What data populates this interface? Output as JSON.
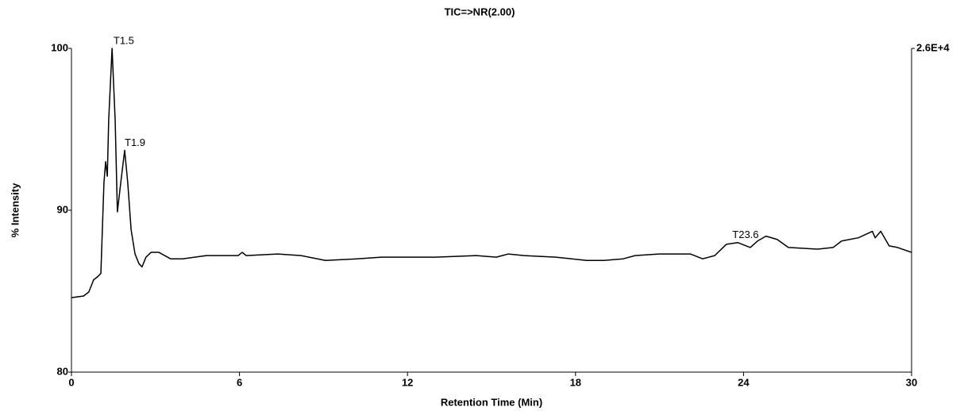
{
  "chart_data": {
    "type": "line",
    "title": "TIC=>NR(2.00)",
    "x_label": "Retention Time (Min)",
    "y_label": "% Intensity",
    "x": [
      0,
      0.43,
      0.62,
      0.79,
      0.94,
      1.05,
      1.16,
      1.22,
      1.28,
      1.33,
      1.45,
      1.56,
      1.64,
      1.76,
      1.9,
      2.01,
      2.13,
      2.27,
      2.41,
      2.52,
      2.66,
      2.84,
      3.12,
      3.54,
      3.97,
      4.82,
      5.39,
      5.95,
      6.1,
      6.24,
      7.37,
      8.2,
      9.07,
      10.2,
      11.06,
      11.6,
      13.0,
      14.46,
      15.17,
      15.6,
      16.16,
      17.3,
      18.4,
      19.0,
      19.7,
      20.13,
      20.98,
      22.1,
      22.54,
      22.97,
      23.39,
      23.8,
      24.24,
      24.5,
      24.8,
      25.2,
      25.6,
      26.65,
      27.2,
      27.5,
      28.1,
      28.6,
      28.7,
      28.9,
      29.2,
      29.5,
      30
    ],
    "series": [
      {
        "color": "#000000",
        "values": [
          84.6,
          84.7,
          84.95,
          85.7,
          85.9,
          86.1,
          91.7,
          93.0,
          92.1,
          95.6,
          100,
          95.6,
          89.9,
          91.7,
          93.7,
          91.7,
          88.8,
          87.3,
          86.7,
          86.5,
          87.1,
          87.4,
          87.4,
          87.0,
          87.0,
          87.2,
          87.2,
          87.2,
          87.4,
          87.2,
          87.3,
          87.2,
          86.9,
          87.0,
          87.1,
          87.1,
          87.1,
          87.2,
          87.1,
          87.3,
          87.2,
          87.1,
          86.9,
          86.9,
          87.0,
          87.2,
          87.3,
          87.3,
          87.0,
          87.2,
          87.9,
          88.0,
          87.7,
          88.1,
          88.4,
          88.2,
          87.7,
          87.6,
          87.7,
          88.1,
          88.3,
          88.7,
          88.3,
          88.7,
          87.8,
          87.7,
          87.4
        ]
      }
    ],
    "annotations": [
      {
        "text": "T1.5",
        "x": 1.5,
        "y": 100
      },
      {
        "text": "T1.9",
        "x": 1.9,
        "y": 93.7
      },
      {
        "text": "T23.6",
        "x": 23.6,
        "y": 88.0
      }
    ],
    "xlim": [
      0,
      30
    ],
    "xticks": [
      0,
      6,
      12,
      18,
      24,
      30
    ],
    "ylim": [
      80,
      100
    ],
    "yticks": [
      80,
      90,
      100
    ],
    "y2lim": [
      20800,
      26000
    ],
    "y2ticks": [
      {
        "value": 26000,
        "label": "2.6E+4"
      }
    ],
    "grid": false
  }
}
